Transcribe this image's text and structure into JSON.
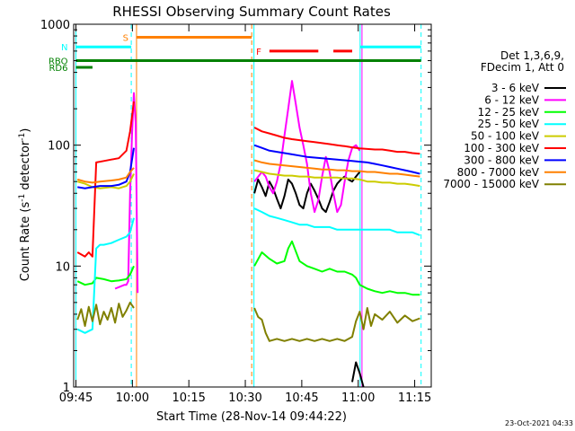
{
  "chart_data": {
    "type": "line",
    "title": "RHESSI Observing Summary Count Rates",
    "xlabel": "Start Time (28-Nov-14 09:44:22)",
    "ylabel_main": "Count Rate (s",
    "ylabel_sup1": "-1",
    "ylabel_mid": " detector",
    "ylabel_sup2": "-1",
    "ylabel_end": ")",
    "timestamp": "23-Oct-2021 04:33",
    "y_scale": "log",
    "ylim": [
      1,
      1000
    ],
    "xlim_minutes": [
      0,
      95
    ],
    "x_ticks": [
      {
        "m": 0.6,
        "label": "09:45"
      },
      {
        "m": 15.6,
        "label": "10:00"
      },
      {
        "m": 30.6,
        "label": "10:15"
      },
      {
        "m": 45.6,
        "label": "10:30"
      },
      {
        "m": 60.6,
        "label": "10:45"
      },
      {
        "m": 75.6,
        "label": "11:00"
      },
      {
        "m": 90.6,
        "label": "11:15"
      }
    ],
    "y_ticks": [
      {
        "v": 1,
        "label": "1"
      },
      {
        "v": 10,
        "label": "10"
      },
      {
        "v": 100,
        "label": "100"
      },
      {
        "v": 1000,
        "label": "1000"
      }
    ],
    "legend_header": [
      "Det 1,3,6,9,",
      "FDecim 1, Att 0"
    ],
    "series": [
      {
        "name": "3 - 6 keV",
        "color": "#000000",
        "segments": [
          {
            "x": [
              74.0,
              75.0,
              76.0,
              77.0
            ],
            "y": [
              1.1,
              1.6,
              1.3,
              1.0
            ]
          },
          {
            "x": [
              48.0,
              49.0,
              50.0,
              51.0,
              52.0,
              53.0,
              54.0,
              55.0,
              56.0,
              57.0,
              58.0,
              59.0,
              60.0,
              61.0,
              62.0,
              63.0,
              64.0,
              65.0,
              66.0,
              67.0,
              68.0,
              69.0,
              70.0,
              71.0,
              72.0,
              73.0,
              74.0,
              75.0,
              76.0
            ],
            "y": [
              40,
              52,
              45,
              38,
              50,
              44,
              36,
              30,
              38,
              52,
              48,
              40,
              32,
              30,
              40,
              48,
              42,
              36,
              30,
              28,
              34,
              42,
              48,
              52,
              55,
              52,
              50,
              55,
              60
            ]
          }
        ]
      },
      {
        "name": "6 - 12 keV",
        "color": "#ff00ff",
        "segments": [
          {
            "x": [
              11.0,
              12.5,
              13.5,
              14.0,
              14.5,
              15.0,
              15.5,
              16.0,
              16.5,
              17.0
            ],
            "y": [
              6.5,
              6.8,
              7.0,
              7.0,
              7.5,
              40,
              120,
              270,
              150,
              6.0
            ]
          },
          {
            "x": [
              48.0,
              50.0,
              51.0,
              52.0,
              53.0,
              54.0,
              55.0,
              56.0,
              57.0,
              58.0,
              59.0,
              60.0,
              61.0,
              62.0,
              63.0,
              64.0,
              65.0,
              66.0,
              67.0,
              68.0,
              69.0,
              70.0,
              71.0,
              72.0,
              73.0,
              74.0,
              75.0,
              76.0
            ],
            "y": [
              50,
              60,
              55,
              45,
              40,
              50,
              70,
              120,
              200,
              340,
              220,
              140,
              100,
              70,
              40,
              28,
              35,
              55,
              80,
              60,
              40,
              28,
              32,
              50,
              75,
              95,
              100,
              90
            ]
          }
        ]
      },
      {
        "name": "12 - 25 keV",
        "color": "#00ff00",
        "segments": [
          {
            "x": [
              1.0,
              3.0,
              5.0,
              6.0,
              8.0,
              10.0,
              12.0,
              14.0,
              15.0,
              16.0
            ],
            "y": [
              7.5,
              7.0,
              7.2,
              8.0,
              7.8,
              7.5,
              7.6,
              7.8,
              8.5,
              10.0
            ]
          },
          {
            "x": [
              48.0,
              50.0,
              52.0,
              54.0,
              56.0,
              57.0,
              58.0,
              60.0,
              62.0,
              64.0,
              66.0,
              68.0,
              70.0,
              72.0,
              74.0,
              75.0,
              76.0,
              78.0,
              80.0,
              82.0,
              84.0,
              86.0,
              88.0,
              90.0,
              92.0
            ],
            "y": [
              10.0,
              13.0,
              11.5,
              10.5,
              11.0,
              14.0,
              16.0,
              11.0,
              10.0,
              9.5,
              9.0,
              9.5,
              9.0,
              9.0,
              8.5,
              8.0,
              7.0,
              6.5,
              6.2,
              6.0,
              6.2,
              6.0,
              6.0,
              5.8,
              5.8
            ]
          }
        ]
      },
      {
        "name": "25 - 50 keV",
        "color": "#00ffff",
        "segments": [
          {
            "x": [
              1.0,
              3.0,
              4.0,
              5.0,
              6.0,
              7.0,
              8.0,
              10.0,
              12.0,
              14.0,
              15.0,
              16.0
            ],
            "y": [
              3.0,
              2.8,
              2.9,
              3.0,
              14.0,
              15.0,
              15.0,
              15.5,
              16.5,
              17.5,
              19.0,
              25.0
            ]
          },
          {
            "x": [
              48.0,
              50.0,
              52.0,
              54.0,
              56.0,
              58.0,
              60.0,
              62.0,
              64.0,
              66.0,
              68.0,
              70.0,
              72.0,
              74.0,
              76.0,
              78.0,
              80.0,
              82.0,
              84.0,
              86.0,
              88.0,
              90.0,
              92.0
            ],
            "y": [
              30,
              28,
              26,
              25,
              24,
              23,
              22,
              22,
              21,
              21,
              21,
              20,
              20,
              20,
              20,
              20,
              20,
              20,
              20,
              19,
              19,
              19,
              18
            ]
          }
        ]
      },
      {
        "name": "50 - 100 keV",
        "color": "#cccc00",
        "segments": [
          {
            "x": [
              1.0,
              3.0,
              5.0,
              7.0,
              10.0,
              12.0,
              14.0,
              15.0,
              16.0
            ],
            "y": [
              50,
              48,
              45,
              44,
              45,
              44,
              46,
              50,
              58
            ]
          },
          {
            "x": [
              48.0,
              50.0,
              52.0,
              54.0,
              56.0,
              58.0,
              60.0,
              62.0,
              64.0,
              66.0,
              68.0,
              70.0,
              72.0,
              74.0,
              76.0,
              78.0,
              80.0,
              82.0,
              84.0,
              86.0,
              88.0,
              90.0,
              92.0
            ],
            "y": [
              62,
              60,
              58,
              57,
              56,
              56,
              55,
              55,
              54,
              54,
              54,
              54,
              53,
              53,
              52,
              50,
              50,
              49,
              49,
              48,
              48,
              47,
              46
            ]
          }
        ]
      },
      {
        "name": "100 - 300 keV",
        "color": "#ff0000",
        "segments": [
          {
            "x": [
              1.0,
              3.0,
              4.0,
              5.0,
              6.0,
              8.0,
              10.0,
              12.0,
              14.0,
              15.0,
              16.0
            ],
            "y": [
              13,
              12,
              13,
              12,
              72,
              74,
              76,
              78,
              90,
              130,
              230
            ]
          },
          {
            "x": [
              48.0,
              50.0,
              52.0,
              54.0,
              56.0,
              58.0,
              60.0,
              62.0,
              64.0,
              66.0,
              68.0,
              70.0,
              72.0,
              74.0,
              76.0,
              78.0,
              80.0,
              82.0,
              84.0,
              86.0,
              88.0,
              90.0,
              92.0
            ],
            "y": [
              140,
              130,
              125,
              120,
              115,
              112,
              110,
              108,
              106,
              104,
              102,
              100,
              98,
              96,
              94,
              93,
              92,
              92,
              90,
              88,
              88,
              86,
              85
            ]
          }
        ]
      },
      {
        "name": "300 - 800 keV",
        "color": "#0000ff",
        "segments": [
          {
            "x": [
              1.0,
              3.0,
              5.0,
              7.0,
              10.0,
              12.0,
              14.0,
              15.0,
              16.0
            ],
            "y": [
              45,
              44,
              45,
              46,
              46,
              47,
              50,
              60,
              95
            ]
          },
          {
            "x": [
              48.0,
              50.0,
              52.0,
              54.0,
              56.0,
              58.0,
              60.0,
              62.0,
              64.0,
              66.0,
              68.0,
              70.0,
              72.0,
              74.0,
              76.0,
              78.0,
              80.0,
              82.0,
              84.0,
              86.0,
              88.0,
              90.0,
              92.0
            ],
            "y": [
              100,
              95,
              90,
              88,
              86,
              84,
              82,
              80,
              79,
              78,
              77,
              76,
              75,
              74,
              73,
              72,
              70,
              68,
              66,
              64,
              62,
              60,
              58
            ]
          }
        ]
      },
      {
        "name": "800 - 7000 keV",
        "color": "#ff8000",
        "segments": [
          {
            "x": [
              1.0,
              3.0,
              5.0,
              7.0,
              10.0,
              12.0,
              14.0,
              15.0,
              16.0
            ],
            "y": [
              52,
              50,
              49,
              50,
              51,
              52,
              54,
              60,
              65
            ]
          },
          {
            "x": [
              48.0,
              50.0,
              52.0,
              54.0,
              56.0,
              58.0,
              60.0,
              62.0,
              64.0,
              66.0,
              68.0,
              70.0,
              72.0,
              74.0,
              76.0,
              78.0,
              80.0,
              82.0,
              84.0,
              86.0,
              88.0,
              90.0,
              92.0
            ],
            "y": [
              75,
              72,
              70,
              69,
              68,
              67,
              66,
              65,
              64,
              63,
              63,
              62,
              62,
              61,
              61,
              60,
              60,
              59,
              58,
              58,
              57,
              56,
              55
            ]
          }
        ]
      },
      {
        "name": "7000 - 15000 keV",
        "color": "#808000",
        "segments": [
          {
            "x": [
              1.0,
              2.0,
              3.0,
              4.0,
              5.0,
              6.0,
              7.0,
              8.0,
              9.0,
              10.0,
              11.0,
              12.0,
              13.0,
              14.0,
              15.0,
              16.0
            ],
            "y": [
              3.6,
              4.4,
              3.2,
              4.6,
              3.5,
              4.8,
              3.3,
              4.2,
              3.6,
              4.5,
              3.4,
              4.9,
              3.8,
              4.3,
              5.0,
              4.5
            ]
          },
          {
            "x": [
              48.0,
              49.0,
              50.0,
              51.0,
              52.0,
              54.0,
              56.0,
              58.0,
              60.0,
              62.0,
              64.0,
              66.0,
              68.0,
              70.0,
              72.0,
              74.0,
              75.0,
              76.0,
              77.0,
              78.0,
              79.0,
              80.0,
              82.0,
              84.0,
              86.0,
              88.0,
              90.0,
              92.0
            ],
            "y": [
              4.5,
              3.8,
              3.6,
              2.8,
              2.4,
              2.5,
              2.4,
              2.5,
              2.4,
              2.5,
              2.4,
              2.5,
              2.4,
              2.5,
              2.4,
              2.6,
              3.5,
              4.2,
              3.0,
              4.5,
              3.2,
              4.0,
              3.6,
              4.2,
              3.4,
              3.9,
              3.5,
              3.7
            ]
          }
        ]
      }
    ],
    "vlines": [
      {
        "m": 0.6,
        "color": "#00ffff",
        "style": "solid"
      },
      {
        "m": 15.3,
        "color": "#00ffff",
        "style": "dashed"
      },
      {
        "m": 16.7,
        "color": "#ff8000",
        "style": "solid"
      },
      {
        "m": 47.3,
        "color": "#ff8000",
        "style": "dashed"
      },
      {
        "m": 47.9,
        "color": "#00ffff",
        "style": "solid"
      },
      {
        "m": 76.1,
        "color": "#00ffff",
        "style": "solid"
      },
      {
        "m": 76.6,
        "color": "#ff00ff",
        "style": "solid"
      },
      {
        "m": 92.3,
        "color": "#00ffff",
        "style": "dashed"
      }
    ],
    "flag_bars": [
      {
        "label": "RBO",
        "color": "#008000",
        "y_value": 500,
        "m0": 0.6,
        "m1": 92.3
      },
      {
        "label": "RD6",
        "color": "#008000",
        "y_value": 440,
        "m0": 0.6,
        "m1": 5.0
      },
      {
        "label": "S",
        "color": "#ff8000",
        "y_value": 780,
        "m0": 16.7,
        "m1": 47.3
      },
      {
        "label": "N",
        "color": "#00ffff",
        "y_value": 650,
        "m0": 0.6,
        "m1": 15.3
      },
      {
        "label": "",
        "color": "#00ffff",
        "y_value": 650,
        "m0": 76.1,
        "m1": 92.3
      },
      {
        "label": "F",
        "color": "#ff0000",
        "y_value": 600,
        "m0": 52.0,
        "m1": 65.0
      },
      {
        "label": "",
        "color": "#ff0000",
        "y_value": 600,
        "m0": 69.0,
        "m1": 74.0
      }
    ]
  }
}
